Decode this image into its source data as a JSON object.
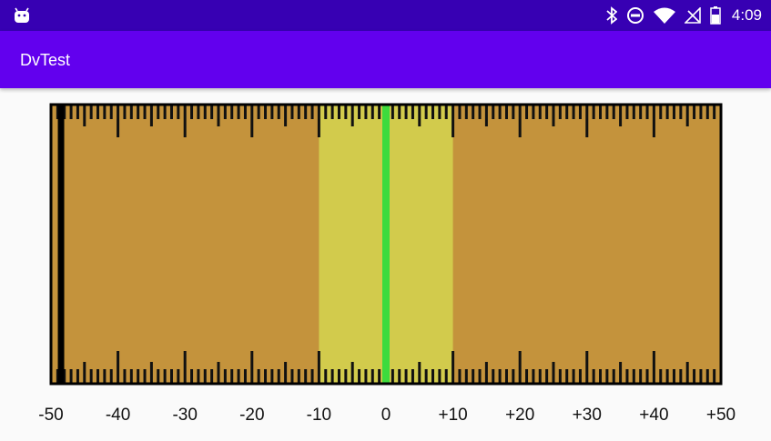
{
  "status_bar": {
    "time": "4:09",
    "icons": [
      "android-icon",
      "bluetooth-icon",
      "do-not-disturb-icon",
      "wifi-icon",
      "no-signal-icon",
      "battery-icon"
    ]
  },
  "app_bar": {
    "title": "DvTest"
  },
  "gauge": {
    "min": -50,
    "max": 50,
    "tick_labels": [
      "-50",
      "-40",
      "-30",
      "-20",
      "-10",
      "0",
      "+10",
      "+20",
      "+30",
      "+40",
      "+50"
    ],
    "highlight_range": [
      -10,
      10
    ],
    "needle_value": 0,
    "marker_value": -48.5,
    "colors": {
      "background": "#c4933c",
      "highlight": "#d2cb4c",
      "needle": "#3ddb3d",
      "marker": "#000000",
      "border": "#000000",
      "ticks": "#111111"
    }
  }
}
